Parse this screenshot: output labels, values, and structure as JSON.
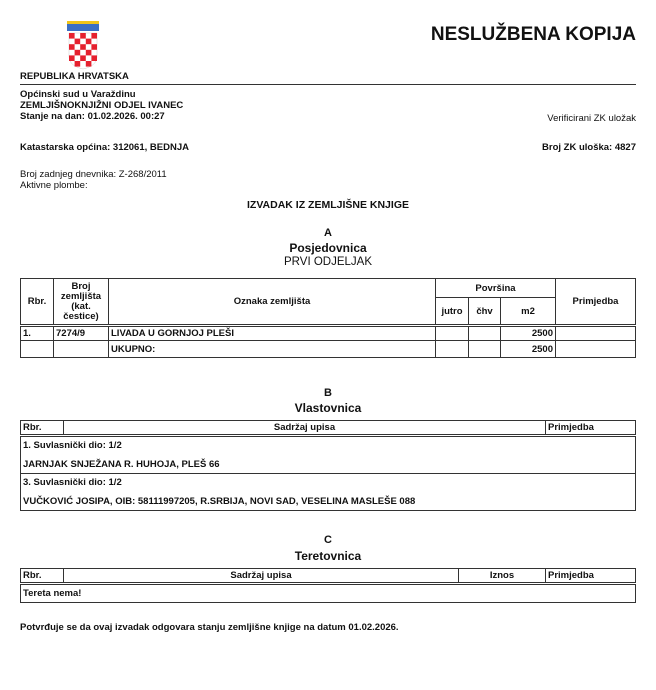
{
  "header": {
    "title": "NESLUŽBENA KOPIJA",
    "country": "REPUBLIKA HRVATSKA",
    "court": "Općinski sud u Varaždinu",
    "department": "ZEMLJIŠNOKNJIŽNI ODJEL IVANEC",
    "state_date": "Stanje na dan: 01.02.2026. 00:27",
    "verified": "Verificirani ZK uložak",
    "cadastral": "Katastarska općina: 312061, BEDNJA",
    "zk_number": "Broj ZK uloška: 4827",
    "last_diary": "Broj zadnjeg dnevnika: Z-268/2011",
    "active_seals": "Aktivne plombe:",
    "doc_title": "IZVADAK IZ ZEMLJIŠNE KNJIGE",
    "coat_of_arms": "coat-of-arms-croatia"
  },
  "section_a": {
    "letter": "A",
    "name": "Posjedovnica",
    "sub": "PRVI ODJELJAK",
    "headers": {
      "rbr": "Rbr.",
      "broj": "Broj zemljišta (kat. čestice)",
      "oznaka": "Oznaka zemljišta",
      "povrsina": "Površina",
      "jutro": "jutro",
      "chv": "čhv",
      "m2": "m2",
      "primjedba": "Primjedba"
    },
    "rows": [
      {
        "rbr": "1.",
        "broj": "7274/9",
        "oznaka": "LIVADA U GORNJOJ PLEŠI",
        "jutro": "",
        "chv": "",
        "m2": "2500",
        "primjedba": ""
      }
    ],
    "total": {
      "label": "UKUPNO:",
      "m2": "2500"
    }
  },
  "section_b": {
    "letter": "B",
    "name": "Vlastovnica",
    "headers": {
      "rbr": "Rbr.",
      "sadrzaj": "Sadržaj upisa",
      "primjedba": "Primjedba"
    },
    "entries": [
      {
        "share": "1. Suvlasnički dio: 1/2",
        "owner": "JARNJAK SNJEŽANA R. HUHOJA, PLEŠ 66"
      },
      {
        "share": "3. Suvlasnički dio: 1/2",
        "owner": "VUČKOVIĆ JOSIPA, OIB: 58111997205, R.SRBIJA, NOVI SAD, VESELINA MASLEŠE 088"
      }
    ]
  },
  "section_c": {
    "letter": "C",
    "name": "Teretovnica",
    "headers": {
      "rbr": "Rbr.",
      "sadrzaj": "Sadržaj upisa",
      "iznos": "Iznos",
      "primjedba": "Primjedba"
    },
    "none": "Tereta nema!"
  },
  "footer": {
    "confirmation": "Potvrđuje se da ovaj izvadak odgovara stanju zemljišne knjige na datum 01.02.2026."
  }
}
